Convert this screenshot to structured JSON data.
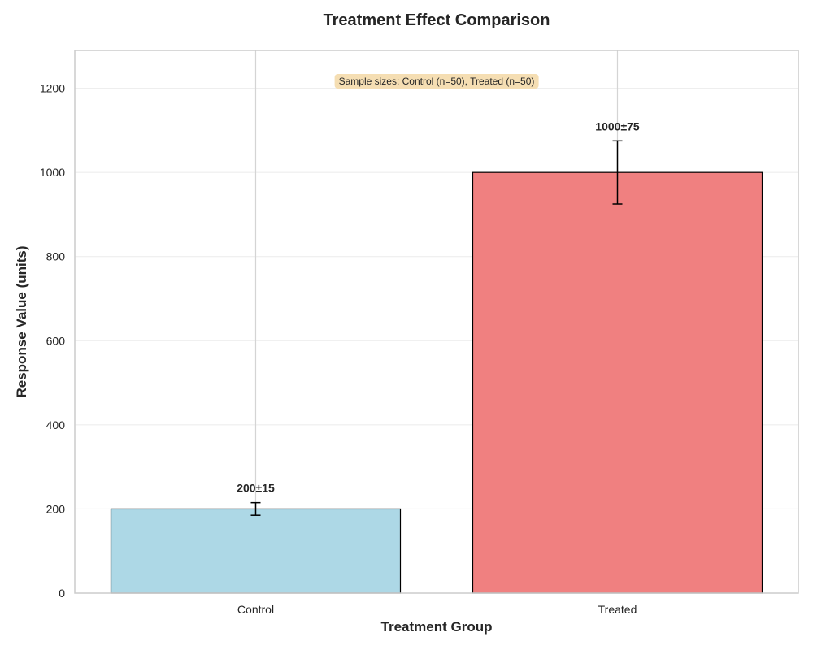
{
  "chart_data": {
    "type": "bar",
    "title": "Treatment Effect Comparison",
    "xlabel": "Treatment Group",
    "ylabel": "Response Value (units)",
    "categories": [
      "Control",
      "Treated"
    ],
    "values": [
      200,
      1000
    ],
    "errors": [
      15,
      75
    ],
    "data_labels": [
      "200±15",
      "1000±75"
    ],
    "bar_colors": [
      "#add8e6",
      "#f08080"
    ],
    "edge_color": "#000000",
    "ylim": [
      0,
      1290
    ],
    "yticks": [
      0,
      200,
      400,
      600,
      800,
      1000,
      1200
    ],
    "grid": true,
    "annotation": "Sample sizes: Control (n=50), Treated (n=50)",
    "annotation_bg": "#f5deb3"
  }
}
